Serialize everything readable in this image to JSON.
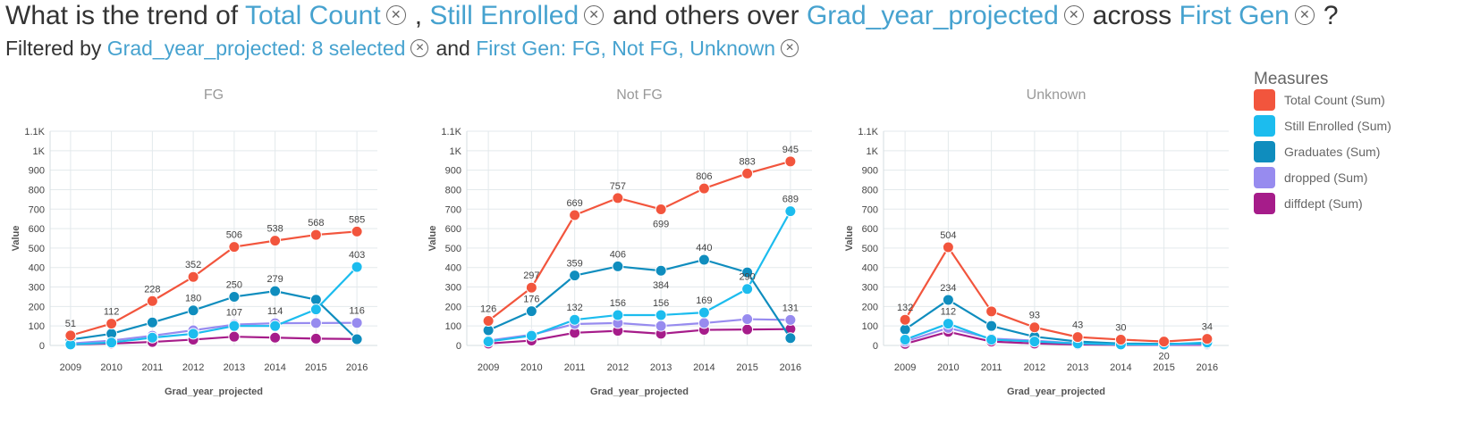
{
  "question": {
    "prefix": "What is the trend of",
    "measure1": "Total Count",
    "sep": ",",
    "measure2": "Still Enrolled",
    "mid": "and others over",
    "dimension": "Grad_year_projected",
    "across": "across",
    "facet": "First Gen",
    "suffix": "?"
  },
  "filters": {
    "prefix": "Filtered by",
    "filter1": "Grad_year_projected: 8 selected",
    "and": "and",
    "filter2": "First Gen: FG, Not FG, Unknown"
  },
  "icons": {
    "remove": "close-circle-icon",
    "remove_glyph": "✕"
  },
  "legend": {
    "title": "Measures",
    "items": [
      {
        "label": "Total Count (Sum)",
        "color": "#f2553d"
      },
      {
        "label": "Still Enrolled (Sum)",
        "color": "#1cbcee"
      },
      {
        "label": "Graduates (Sum)",
        "color": "#0f8dbe"
      },
      {
        "label": "dropped (Sum)",
        "color": "#978bef"
      },
      {
        "label": "diffdept (Sum)",
        "color": "#a61c8a"
      }
    ]
  },
  "chart_data": [
    {
      "type": "line",
      "title": "FG",
      "xlabel": "Grad_year_projected",
      "ylabel": "Value",
      "ylim": [
        0,
        1100
      ],
      "yticks": [
        "0",
        "100",
        "200",
        "300",
        "400",
        "500",
        "600",
        "700",
        "800",
        "900",
        "1K",
        "1.1K"
      ],
      "categories": [
        "2009",
        "2010",
        "2011",
        "2012",
        "2013",
        "2014",
        "2015",
        "2016"
      ],
      "grid": true,
      "series": [
        {
          "name": "Total Count (Sum)",
          "color": "#f2553d",
          "values": [
            51,
            112,
            228,
            352,
            506,
            538,
            568,
            585
          ],
          "labels": [
            "51",
            "112",
            "228",
            "352",
            "506",
            "538",
            "568",
            "585"
          ]
        },
        {
          "name": "Still Enrolled (Sum)",
          "color": "#1cbcee",
          "values": [
            5,
            15,
            40,
            60,
            100,
            100,
            185,
            403
          ],
          "labels": [
            "",
            "",
            "",
            "",
            "",
            "",
            "",
            "403"
          ]
        },
        {
          "name": "Graduates (Sum)",
          "color": "#0f8dbe",
          "values": [
            30,
            60,
            118,
            180,
            250,
            279,
            235,
            32
          ],
          "labels": [
            "",
            "",
            "",
            "180",
            "250",
            "279",
            "",
            ""
          ]
        },
        {
          "name": "dropped (Sum)",
          "color": "#978bef",
          "values": [
            10,
            25,
            50,
            78,
            107,
            114,
            115,
            116
          ],
          "labels": [
            "",
            "",
            "",
            "",
            "107",
            "114",
            "",
            "116"
          ]
        },
        {
          "name": "diffdept (Sum)",
          "color": "#a61c8a",
          "values": [
            5,
            10,
            18,
            30,
            45,
            40,
            35,
            33
          ],
          "labels": [
            "",
            "",
            "",
            "",
            "",
            "",
            "",
            ""
          ]
        }
      ]
    },
    {
      "type": "line",
      "title": "Not FG",
      "xlabel": "Grad_year_projected",
      "ylabel": "Value",
      "ylim": [
        0,
        1100
      ],
      "yticks": [
        "0",
        "100",
        "200",
        "300",
        "400",
        "500",
        "600",
        "700",
        "800",
        "900",
        "1K",
        "1.1K"
      ],
      "categories": [
        "2009",
        "2010",
        "2011",
        "2012",
        "2013",
        "2014",
        "2015",
        "2016"
      ],
      "grid": true,
      "series": [
        {
          "name": "Total Count (Sum)",
          "color": "#f2553d",
          "values": [
            126,
            297,
            669,
            757,
            699,
            806,
            883,
            945
          ],
          "labels": [
            "126",
            "297",
            "669",
            "757",
            "699",
            "806",
            "883",
            "945"
          ]
        },
        {
          "name": "Still Enrolled (Sum)",
          "color": "#1cbcee",
          "values": [
            20,
            50,
            132,
            156,
            156,
            169,
            290,
            689
          ],
          "labels": [
            "",
            "",
            "132",
            "156",
            "156",
            "169",
            "290",
            "689"
          ]
        },
        {
          "name": "Graduates (Sum)",
          "color": "#0f8dbe",
          "values": [
            78,
            176,
            359,
            406,
            384,
            440,
            375,
            38
          ],
          "labels": [
            "",
            "176",
            "359",
            "406",
            "384",
            "440",
            "",
            ""
          ]
        },
        {
          "name": "dropped (Sum)",
          "color": "#978bef",
          "values": [
            25,
            55,
            110,
            115,
            100,
            115,
            135,
            131
          ],
          "labels": [
            "",
            "",
            "",
            "",
            "",
            "",
            "",
            "131"
          ]
        },
        {
          "name": "diffdept (Sum)",
          "color": "#a61c8a",
          "values": [
            10,
            25,
            65,
            75,
            60,
            80,
            82,
            84
          ],
          "labels": [
            "",
            "",
            "",
            "",
            "",
            "",
            "",
            ""
          ]
        }
      ]
    },
    {
      "type": "line",
      "title": "Unknown",
      "xlabel": "Grad_year_projected",
      "ylabel": "Value",
      "ylim": [
        0,
        1100
      ],
      "yticks": [
        "0",
        "100",
        "200",
        "300",
        "400",
        "500",
        "600",
        "700",
        "800",
        "900",
        "1K",
        "1.1K"
      ],
      "categories": [
        "2009",
        "2010",
        "2011",
        "2012",
        "2013",
        "2014",
        "2015",
        "2016"
      ],
      "grid": true,
      "series": [
        {
          "name": "Total Count (Sum)",
          "color": "#f2553d",
          "values": [
            132,
            504,
            175,
            93,
            43,
            30,
            20,
            34
          ],
          "labels": [
            "132",
            "504",
            "",
            "93",
            "43",
            "30",
            "20",
            "34"
          ]
        },
        {
          "name": "Still Enrolled (Sum)",
          "color": "#1cbcee",
          "values": [
            30,
            112,
            30,
            20,
            10,
            5,
            5,
            15
          ],
          "labels": [
            "",
            "112",
            "",
            "",
            "",
            "",
            "",
            ""
          ]
        },
        {
          "name": "Graduates (Sum)",
          "color": "#0f8dbe",
          "values": [
            82,
            234,
            100,
            45,
            20,
            10,
            8,
            10
          ],
          "labels": [
            "",
            "234",
            "",
            "",
            "",
            "",
            "",
            ""
          ]
        },
        {
          "name": "dropped (Sum)",
          "color": "#978bef",
          "values": [
            20,
            90,
            35,
            25,
            10,
            5,
            3,
            5
          ],
          "labels": [
            "",
            "",
            "",
            "",
            "",
            "",
            "",
            ""
          ]
        },
        {
          "name": "diffdept (Sum)",
          "color": "#a61c8a",
          "values": [
            8,
            70,
            20,
            10,
            5,
            3,
            2,
            3
          ],
          "labels": [
            "",
            "",
            "",
            "",
            "",
            "",
            "",
            ""
          ]
        }
      ]
    }
  ]
}
